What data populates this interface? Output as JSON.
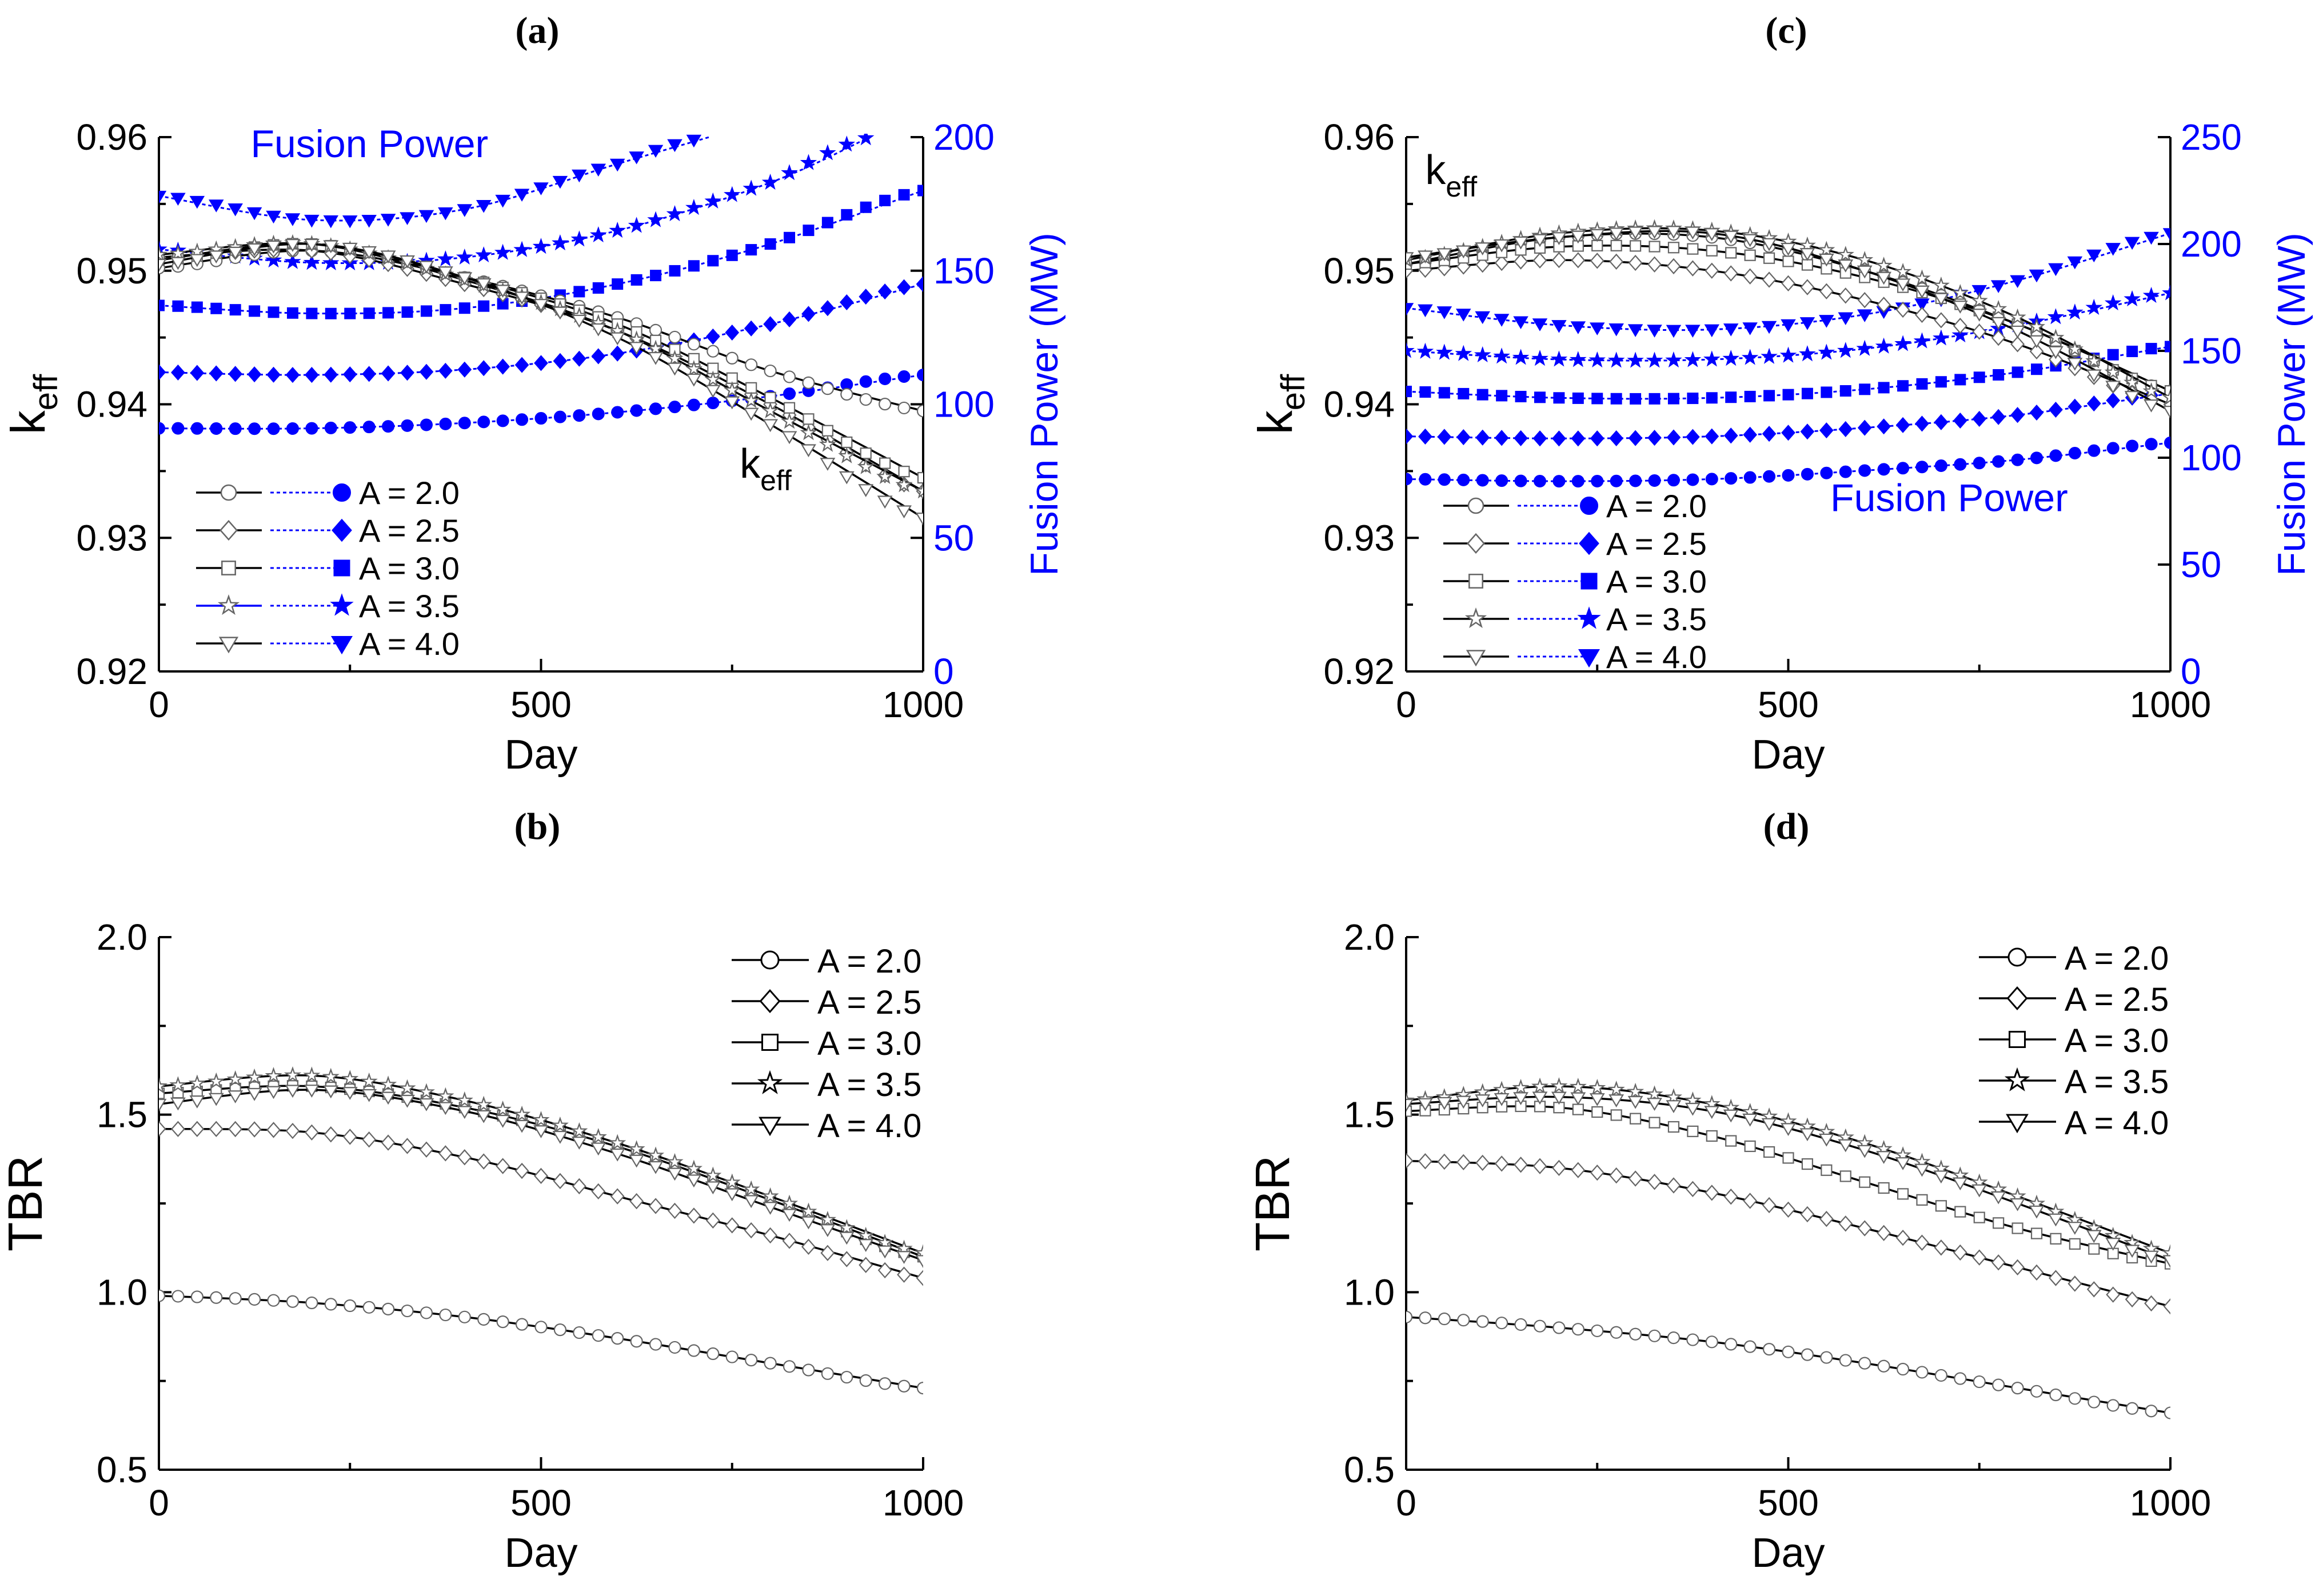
{
  "colors": {
    "axis": "#000000",
    "blue": "#0000ff",
    "black": "#000000",
    "gray": "#666666"
  },
  "chart_data": [
    {
      "id": "a",
      "panel_label": "(a)",
      "type": "line",
      "xlabel": "Day",
      "ylabel": "k",
      "ylabel_sub": "eff",
      "ylabel_right": "Fusion Power (MW)",
      "xlim": [
        0,
        1000
      ],
      "ylim": [
        0.92,
        0.96
      ],
      "ylim_right": [
        0,
        200
      ],
      "xticks": [
        "0",
        "500",
        "1000"
      ],
      "yticks": [
        "0.92",
        "0.93",
        "0.94",
        "0.95",
        "0.96"
      ],
      "yticks_right": [
        "0",
        "50",
        "100",
        "150",
        "200"
      ],
      "annotations": [
        {
          "text": "Fusion Power",
          "sub": "",
          "color": "blue",
          "anchor": [
            120,
            0.9585
          ]
        },
        {
          "text": "k",
          "sub": "eff",
          "color": "black",
          "anchor": [
            760,
            0.9345
          ]
        }
      ],
      "legend": {
        "placement": "bottom-left",
        "style": "dual",
        "entries": [
          {
            "label": "A = 2.0",
            "marker": "circle"
          },
          {
            "label": "A = 2.5",
            "marker": "diamond"
          },
          {
            "label": "A = 3.0",
            "marker": "square"
          },
          {
            "label": "A = 3.5",
            "marker": "star"
          },
          {
            "label": "A = 4.0",
            "marker": "triangle"
          }
        ]
      },
      "keff_series": [
        {
          "name": "A = 2.0",
          "marker": "circle",
          "x": [
            0,
            200,
            400,
            600,
            800,
            1000
          ],
          "y": [
            0.9502,
            0.9515,
            0.9495,
            0.9465,
            0.9425,
            0.9395
          ]
        },
        {
          "name": "A = 2.5",
          "marker": "diamond",
          "x": [
            0,
            200,
            400,
            600,
            800,
            1000
          ],
          "y": [
            0.951,
            0.9515,
            0.949,
            0.9455,
            0.94,
            0.9335
          ]
        },
        {
          "name": "A = 3.0",
          "marker": "square",
          "x": [
            0,
            200,
            400,
            600,
            800,
            1000
          ],
          "y": [
            0.9508,
            0.952,
            0.9495,
            0.946,
            0.9405,
            0.9345
          ]
        },
        {
          "name": "A = 3.5",
          "marker": "star",
          "x": [
            0,
            200,
            400,
            600,
            800,
            1000
          ],
          "y": [
            0.9512,
            0.952,
            0.9493,
            0.9455,
            0.9395,
            0.9335
          ]
        },
        {
          "name": "A = 4.0",
          "marker": "triangle",
          "x": [
            0,
            200,
            400,
            600,
            800,
            1000
          ],
          "y": [
            0.9505,
            0.952,
            0.9495,
            0.945,
            0.9385,
            0.9315
          ]
        }
      ],
      "power_series": [
        {
          "name": "A = 2.0",
          "marker": "circle",
          "x": [
            0,
            200,
            400,
            600,
            800,
            1000
          ],
          "y": [
            91,
            91,
            93,
            97,
            103,
            111
          ]
        },
        {
          "name": "A = 2.5",
          "marker": "diamond",
          "x": [
            0,
            200,
            400,
            600,
            800,
            1000
          ],
          "y": [
            112,
            111,
            113,
            119,
            130,
            145
          ]
        },
        {
          "name": "A = 3.0",
          "marker": "square",
          "x": [
            0,
            200,
            400,
            600,
            800,
            1000
          ],
          "y": [
            137,
            134,
            136,
            145,
            160,
            180
          ]
        },
        {
          "name": "A = 3.5",
          "marker": "star",
          "x": [
            0,
            200,
            400,
            600,
            800,
            930
          ],
          "y": [
            158,
            153,
            155,
            165,
            183,
            200
          ]
        },
        {
          "name": "A = 4.0",
          "marker": "triangle",
          "x": [
            0,
            200,
            400,
            600,
            720
          ],
          "y": [
            178,
            169,
            173,
            190,
            200
          ]
        }
      ]
    },
    {
      "id": "c",
      "panel_label": "(c)",
      "type": "line",
      "xlabel": "Day",
      "ylabel": "k",
      "ylabel_sub": "eff",
      "ylabel_right": "Fusion Power (MW)",
      "xlim": [
        0,
        1000
      ],
      "ylim": [
        0.92,
        0.96
      ],
      "ylim_right": [
        0,
        250
      ],
      "xticks": [
        "0",
        "500",
        "1000"
      ],
      "yticks": [
        "0.92",
        "0.93",
        "0.94",
        "0.95",
        "0.96"
      ],
      "yticks_right": [
        "0",
        "50",
        "100",
        "150",
        "200",
        "250"
      ],
      "annotations": [
        {
          "text": "k",
          "sub": "eff",
          "color": "black",
          "anchor": [
            25,
            0.9565
          ]
        },
        {
          "text": "Fusion Power",
          "sub": "",
          "color": "blue",
          "anchor": [
            555,
            0.932
          ]
        }
      ],
      "legend": {
        "placement": "bottom-left",
        "style": "dual",
        "entries": [
          {
            "label": "A = 2.0",
            "marker": "circle"
          },
          {
            "label": "A = 2.5",
            "marker": "diamond"
          },
          {
            "label": "A = 3.0",
            "marker": "square"
          },
          {
            "label": "A = 3.5",
            "marker": "star"
          },
          {
            "label": "A = 4.0",
            "marker": "triangle"
          }
        ]
      },
      "keff_series": [
        {
          "name": "A = 2.0",
          "marker": "circle",
          "x": [
            0,
            200,
            400,
            600,
            800,
            1000
          ],
          "y": [
            0.9505,
            0.9525,
            0.9525,
            0.95,
            0.946,
            0.941
          ]
        },
        {
          "name": "A = 2.5",
          "marker": "diamond",
          "x": [
            0,
            200,
            400,
            600,
            800,
            1000
          ],
          "y": [
            0.95,
            0.9508,
            0.95,
            0.9478,
            0.9445,
            0.94
          ]
        },
        {
          "name": "A = 3.0",
          "marker": "square",
          "x": [
            0,
            200,
            400,
            600,
            800,
            1000
          ],
          "y": [
            0.9505,
            0.9518,
            0.9515,
            0.9495,
            0.946,
            0.941
          ]
        },
        {
          "name": "A = 3.5",
          "marker": "star",
          "x": [
            0,
            200,
            400,
            600,
            800,
            1000
          ],
          "y": [
            0.9508,
            0.9528,
            0.953,
            0.9508,
            0.9465,
            0.9405
          ]
        },
        {
          "name": "A = 4.0",
          "marker": "triangle",
          "x": [
            0,
            200,
            400,
            600,
            800,
            1000
          ],
          "y": [
            0.951,
            0.9525,
            0.9528,
            0.95,
            0.9455,
            0.9395
          ]
        }
      ],
      "power_series": [
        {
          "name": "A = 2.0",
          "marker": "circle",
          "x": [
            0,
            200,
            400,
            600,
            800,
            1000
          ],
          "y": [
            90,
            89,
            90,
            94,
            99,
            107
          ]
        },
        {
          "name": "A = 2.5",
          "marker": "diamond",
          "x": [
            0,
            200,
            400,
            600,
            800,
            1000
          ],
          "y": [
            110,
            109,
            110,
            114,
            120,
            130
          ]
        },
        {
          "name": "A = 3.0",
          "marker": "square",
          "x": [
            0,
            200,
            400,
            600,
            800,
            1000
          ],
          "y": [
            131,
            128,
            128,
            132,
            140,
            152
          ]
        },
        {
          "name": "A = 3.5",
          "marker": "star",
          "x": [
            0,
            200,
            400,
            600,
            800,
            1000
          ],
          "y": [
            150,
            146,
            146,
            151,
            162,
            177
          ]
        },
        {
          "name": "A = 4.0",
          "marker": "triangle",
          "x": [
            0,
            200,
            400,
            600,
            800,
            1000
          ],
          "y": [
            170,
            162,
            160,
            167,
            183,
            205
          ]
        }
      ]
    },
    {
      "id": "b",
      "panel_label": "(b)",
      "type": "line",
      "xlabel": "Day",
      "ylabel": "TBR",
      "xlim": [
        0,
        1000
      ],
      "ylim": [
        0.5,
        2.0
      ],
      "xticks": [
        "0",
        "500",
        "1000"
      ],
      "yticks": [
        "0.5",
        "1.0",
        "1.5",
        "2.0"
      ],
      "legend": {
        "placement": "top-right",
        "style": "single",
        "entries": [
          {
            "label": "A = 2.0",
            "marker": "circle"
          },
          {
            "label": "A = 2.5",
            "marker": "diamond"
          },
          {
            "label": "A = 3.0",
            "marker": "square"
          },
          {
            "label": "A = 3.5",
            "marker": "star"
          },
          {
            "label": "A = 4.0",
            "marker": "triangle"
          }
        ]
      },
      "series": [
        {
          "name": "A = 2.0",
          "marker": "circle",
          "x": [
            0,
            200,
            400,
            600,
            800,
            1000
          ],
          "y": [
            0.99,
            0.97,
            0.93,
            0.87,
            0.8,
            0.73
          ]
        },
        {
          "name": "A = 2.5",
          "marker": "diamond",
          "x": [
            0,
            200,
            400,
            600,
            800,
            1000
          ],
          "y": [
            1.46,
            1.45,
            1.38,
            1.27,
            1.16,
            1.04
          ]
        },
        {
          "name": "A = 3.0",
          "marker": "square",
          "x": [
            0,
            200,
            400,
            600,
            800,
            1000
          ],
          "y": [
            1.56,
            1.58,
            1.52,
            1.41,
            1.26,
            1.1
          ]
        },
        {
          "name": "A = 3.5",
          "marker": "star",
          "x": [
            0,
            200,
            400,
            600,
            800,
            1000
          ],
          "y": [
            1.58,
            1.61,
            1.54,
            1.42,
            1.27,
            1.11
          ]
        },
        {
          "name": "A = 4.0",
          "marker": "triangle",
          "x": [
            0,
            200,
            400,
            600,
            800,
            1000
          ],
          "y": [
            1.53,
            1.57,
            1.51,
            1.39,
            1.24,
            1.09
          ]
        }
      ]
    },
    {
      "id": "d",
      "panel_label": "(d)",
      "type": "line",
      "xlabel": "Day",
      "ylabel": "TBR",
      "xlim": [
        0,
        1000
      ],
      "ylim": [
        0.5,
        2.0
      ],
      "xticks": [
        "0",
        "500",
        "1000"
      ],
      "yticks": [
        "0.5",
        "1.0",
        "1.5",
        "2.0"
      ],
      "legend": {
        "placement": "top-right",
        "style": "single",
        "entries": [
          {
            "label": "A = 2.0",
            "marker": "circle"
          },
          {
            "label": "A = 2.5",
            "marker": "diamond"
          },
          {
            "label": "A = 3.0",
            "marker": "square"
          },
          {
            "label": "A = 3.5",
            "marker": "star"
          },
          {
            "label": "A = 4.0",
            "marker": "triangle"
          }
        ]
      },
      "series": [
        {
          "name": "A = 2.0",
          "marker": "circle",
          "x": [
            0,
            200,
            400,
            600,
            800,
            1000
          ],
          "y": [
            0.93,
            0.9,
            0.86,
            0.8,
            0.73,
            0.66
          ]
        },
        {
          "name": "A = 2.5",
          "marker": "diamond",
          "x": [
            0,
            200,
            400,
            600,
            800,
            1000
          ],
          "y": [
            1.37,
            1.35,
            1.28,
            1.18,
            1.07,
            0.96
          ]
        },
        {
          "name": "A = 3.0",
          "marker": "square",
          "x": [
            0,
            200,
            400,
            600,
            800,
            1000
          ],
          "y": [
            1.51,
            1.52,
            1.44,
            1.31,
            1.18,
            1.08
          ]
        },
        {
          "name": "A = 3.5",
          "marker": "star",
          "x": [
            0,
            200,
            400,
            600,
            800,
            1000
          ],
          "y": [
            1.54,
            1.58,
            1.53,
            1.42,
            1.27,
            1.11
          ]
        },
        {
          "name": "A = 4.0",
          "marker": "triangle",
          "x": [
            0,
            200,
            400,
            600,
            800,
            1000
          ],
          "y": [
            1.53,
            1.55,
            1.51,
            1.4,
            1.25,
            1.09
          ]
        }
      ]
    }
  ]
}
